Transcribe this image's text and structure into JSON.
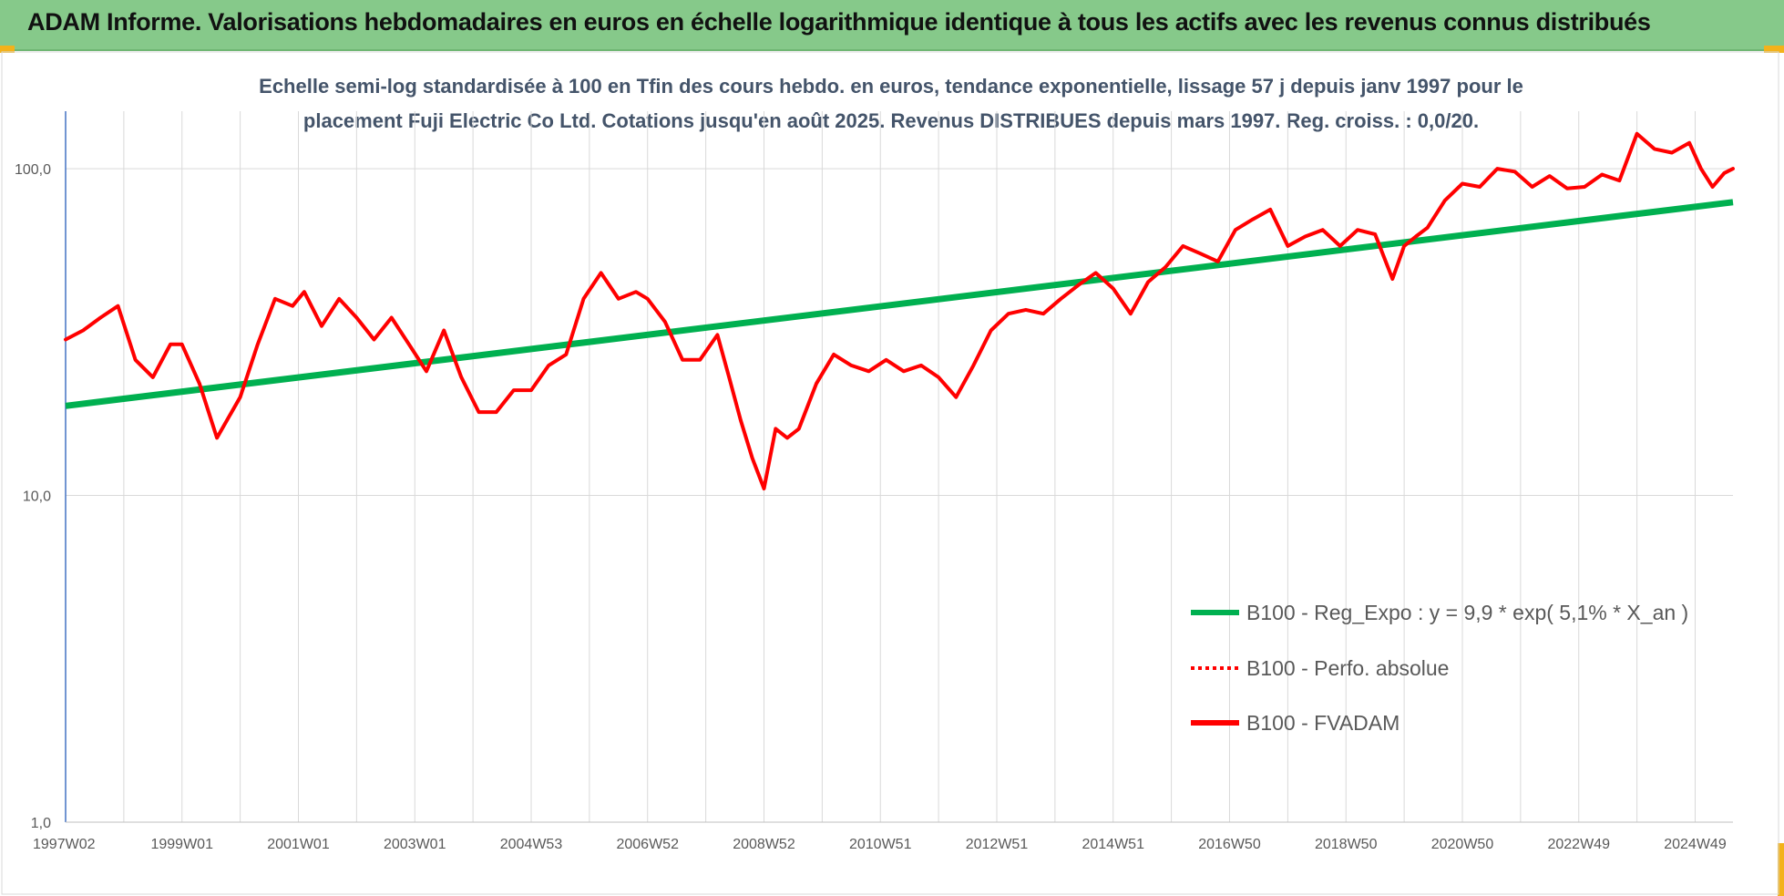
{
  "header": {
    "title": "ADAM Informe. Valorisations hebdomadaires en euros en échelle logarithmique identique à tous les actifs avec les revenus connus distribués"
  },
  "colors": {
    "header_bg": "#86c98a",
    "corner_accent": "#f3b21b",
    "regression": "#00b050",
    "fvadam": "#ff0000",
    "perfo": "#ff0000",
    "gridline": "#d9d9d9",
    "axis": "#4472c4"
  },
  "chart_data": {
    "type": "line",
    "subtitle_lines": [
      "Echelle semi-log standardisée à 100 en Tfin des cours hebdo. en euros, tendance exponentielle, lissage 57 j depuis janv 1997 pour le",
      "placement Fuji Electric Co Ltd. Cotations jusqu'en août 2025. Revenus DISTRIBUES depuis mars 1997. Reg. croiss. : 0,0/20."
    ],
    "y_scale": "log",
    "ylim": [
      1,
      150
    ],
    "y_ticks": [
      {
        "value": 1,
        "label": "1,0"
      },
      {
        "value": 10,
        "label": "10,0"
      },
      {
        "value": 100,
        "label": "100,0"
      }
    ],
    "x_range": [
      1997.0,
      2025.65
    ],
    "x_tick_labels": [
      "1997W02",
      "1999W01",
      "2001W01",
      "2003W01",
      "2004W53",
      "2006W52",
      "2008W52",
      "2010W51",
      "2012W51",
      "2014W51",
      "2016W50",
      "2018W50",
      "2020W50",
      "2022W49",
      "2024W49"
    ],
    "x_tick_years": [
      1997.0,
      1999.0,
      2001.0,
      2003.0,
      2005.0,
      2007.0,
      2009.0,
      2011.0,
      2013.0,
      2015.0,
      2017.0,
      2019.0,
      2021.0,
      2023.0,
      2025.0
    ],
    "grid": true,
    "legend_position": "bottom-right",
    "series": [
      {
        "name": "B100 - Reg_Expo : y = 9,9 * exp( 5,1% *  X_an )",
        "style": "solid-thick",
        "color": "#00b050",
        "x": [
          1997.0,
          2025.65
        ],
        "y": [
          18.8,
          79.0
        ]
      },
      {
        "name": "B100 - Perfo. absolue",
        "style": "dotted",
        "color": "#ff0000",
        "x": [],
        "y": []
      },
      {
        "name": "B100 - FVADAM",
        "style": "solid",
        "color": "#ff0000",
        "x": [
          1997.0,
          1997.3,
          1997.6,
          1997.9,
          1998.2,
          1998.5,
          1998.8,
          1999.0,
          1999.3,
          1999.6,
          2000.0,
          2000.3,
          2000.6,
          2000.9,
          2001.1,
          2001.4,
          2001.7,
          2002.0,
          2002.3,
          2002.6,
          2002.9,
          2003.2,
          2003.5,
          2003.8,
          2004.1,
          2004.4,
          2004.7,
          2005.0,
          2005.3,
          2005.6,
          2005.9,
          2006.2,
          2006.5,
          2006.8,
          2007.0,
          2007.3,
          2007.6,
          2007.9,
          2008.2,
          2008.4,
          2008.6,
          2008.8,
          2009.0,
          2009.2,
          2009.4,
          2009.6,
          2009.9,
          2010.2,
          2010.5,
          2010.8,
          2011.1,
          2011.4,
          2011.7,
          2012.0,
          2012.3,
          2012.6,
          2012.9,
          2013.2,
          2013.5,
          2013.8,
          2014.1,
          2014.4,
          2014.7,
          2015.0,
          2015.3,
          2015.6,
          2015.9,
          2016.2,
          2016.5,
          2016.8,
          2017.1,
          2017.4,
          2017.7,
          2018.0,
          2018.3,
          2018.6,
          2018.9,
          2019.2,
          2019.5,
          2019.8,
          2020.0,
          2020.2,
          2020.4,
          2020.7,
          2021.0,
          2021.3,
          2021.6,
          2021.9,
          2022.2,
          2022.5,
          2022.8,
          2023.1,
          2023.4,
          2023.7,
          2024.0,
          2024.3,
          2024.6,
          2024.9,
          2025.1,
          2025.3,
          2025.5,
          2025.65
        ],
        "y": [
          30,
          32,
          35,
          38,
          26,
          23,
          29,
          29,
          22,
          15,
          20,
          29,
          40,
          38,
          42,
          33,
          40,
          35,
          30,
          35,
          29,
          24,
          32,
          23,
          18,
          18,
          21,
          21,
          25,
          27,
          40,
          48,
          40,
          42,
          40,
          34,
          26,
          26,
          31,
          23,
          17,
          13,
          10.5,
          16,
          15,
          16,
          22,
          27,
          25,
          24,
          26,
          24,
          25,
          23,
          20,
          25,
          32,
          36,
          37,
          36,
          40,
          44,
          48,
          43,
          36,
          45,
          50,
          58,
          55,
          52,
          65,
          70,
          75,
          58,
          62,
          65,
          58,
          65,
          63,
          46,
          58,
          62,
          66,
          80,
          90,
          88,
          100,
          98,
          88,
          95,
          87,
          88,
          96,
          92,
          128,
          115,
          112,
          120,
          100,
          88,
          97,
          100
        ]
      }
    ]
  }
}
